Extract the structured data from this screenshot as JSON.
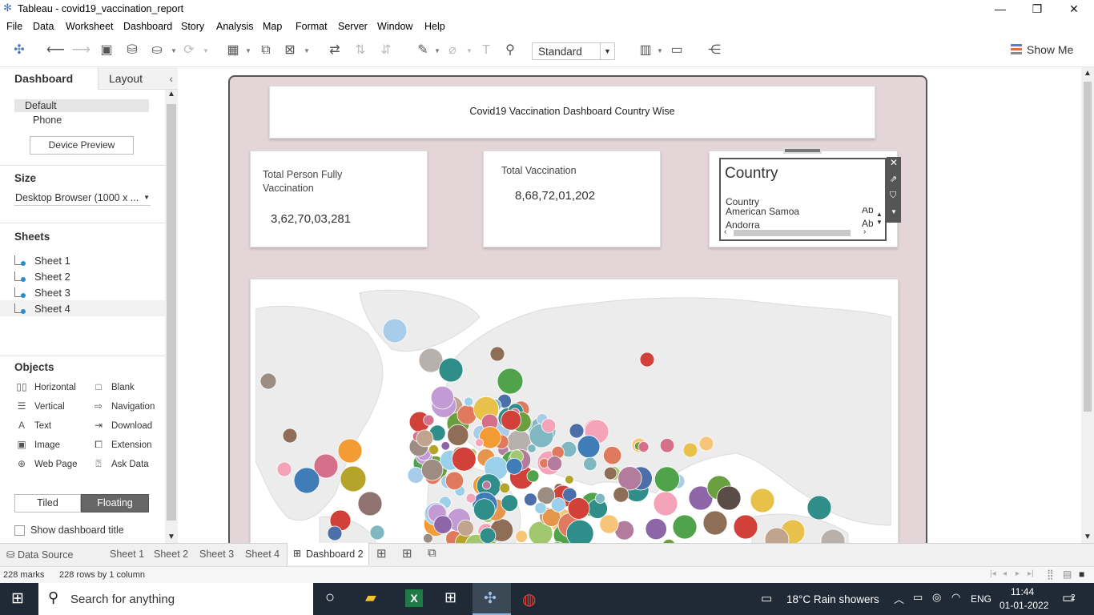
{
  "window": {
    "title": "Tableau - covid19_vaccination_report"
  },
  "menu": [
    "File",
    "Data",
    "Worksheet",
    "Dashboard",
    "Story",
    "Analysis",
    "Map",
    "Format",
    "Server",
    "Window",
    "Help"
  ],
  "toolbar": {
    "fit_select": "Standard",
    "show_me": "Show Me"
  },
  "left_panel": {
    "tabs": {
      "dashboard": "Dashboard",
      "layout": "Layout"
    },
    "device": {
      "default": "Default",
      "phone": "Phone",
      "preview_button": "Device Preview"
    },
    "size": {
      "title": "Size",
      "value": "Desktop Browser (1000 x ..."
    },
    "sheets": {
      "title": "Sheets",
      "items": [
        "Sheet 1",
        "Sheet 2",
        "Sheet 3",
        "Sheet 4"
      ]
    },
    "objects": {
      "title": "Objects",
      "items": [
        "Horizontal",
        "Blank",
        "Vertical",
        "Navigation",
        "Text",
        "Download",
        "Image",
        "Extension",
        "Web Page",
        "Ask Data"
      ]
    },
    "layout_toggle": {
      "tiled": "Tiled",
      "floating": "Floating"
    },
    "show_title": "Show dashboard title"
  },
  "dashboard": {
    "title": "Covid19 Vaccination Dashboard Country Wise",
    "kpi1": {
      "label": "Total Person  Fully Vaccination",
      "value": "3,62,70,03,281"
    },
    "kpi2": {
      "label": "Total Vaccination",
      "value": "8,68,72,01,202"
    },
    "filter": {
      "title": "Country",
      "header": "Country",
      "rows": [
        {
          "name": "American Samoa",
          "abbr": "Ab"
        },
        {
          "name": "Andorra",
          "abbr": "Ab"
        }
      ]
    }
  },
  "tabs": {
    "data_source": "Data Source",
    "sheets": [
      "Sheet 1",
      "Sheet 2",
      "Sheet 3",
      "Sheet 4"
    ],
    "active": "Dashboard 2"
  },
  "status": {
    "marks": "228 marks",
    "rows": "228 rows by 1 column"
  },
  "taskbar": {
    "search": "Search for anything",
    "weather": "18°C  Rain showers",
    "lang": "ENG",
    "time": "11:44",
    "date": "01-01-2022",
    "notifications": "2"
  }
}
